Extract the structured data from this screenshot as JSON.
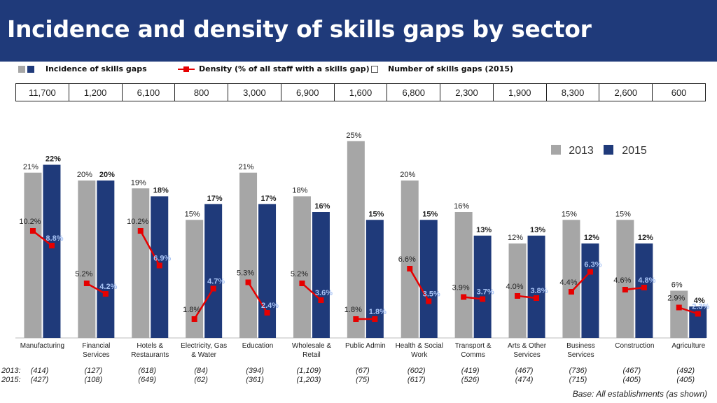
{
  "title": "Incidence and density of skills gaps by sector",
  "legend_top": {
    "incidence": "Incidence of skills gaps",
    "density": "Density (% of all staff with a skills gap)",
    "number": "Number of skills gaps (2015)"
  },
  "colors": {
    "y2013": "#a6a6a6",
    "y2015": "#1f3a7a",
    "density": "#e60000",
    "density_label": "#a9c4f5"
  },
  "number_of_gaps": [
    "11,700",
    "1,200",
    "6,100",
    "800",
    "3,000",
    "6,900",
    "1,600",
    "6,800",
    "2,300",
    "1,900",
    "8,300",
    "2,600",
    "600"
  ],
  "base_counts": {
    "label_2013": "2013:",
    "label_2015": "2015:",
    "y2013": [
      "(414)",
      "(127)",
      "(618)",
      "(84)",
      "(394)",
      "(1,109)",
      "(67)",
      "(602)",
      "(419)",
      "(467)",
      "(736)",
      "(467)",
      "(492)"
    ],
    "y2015": [
      "(427)",
      "(108)",
      "(649)",
      "(62)",
      "(361)",
      "(1,203)",
      "(75)",
      "(617)",
      "(526)",
      "(474)",
      "(715)",
      "(405)",
      "(405)"
    ]
  },
  "base_note": "Base: All establishments (as shown)",
  "chart_data": {
    "type": "bar",
    "categories": [
      [
        "Manufacturing"
      ],
      [
        "Financial",
        "Services"
      ],
      [
        "Hotels &",
        "Restaurants"
      ],
      [
        "Electricity, Gas",
        "& Water"
      ],
      [
        "Education"
      ],
      [
        "Wholesale &",
        "Retail"
      ],
      [
        "Public Admin"
      ],
      [
        "Health & Social",
        "Work"
      ],
      [
        "Transport &",
        "Comms"
      ],
      [
        "Arts & Other",
        "Services"
      ],
      [
        "Business",
        "Services"
      ],
      [
        "Construction"
      ],
      [
        "Agriculture"
      ]
    ],
    "series": [
      {
        "name": "2013",
        "values": [
          21,
          20,
          19,
          15,
          21,
          18,
          25,
          20,
          16,
          12,
          15,
          15,
          6
        ]
      },
      {
        "name": "2015",
        "values": [
          22,
          20,
          18,
          17,
          17,
          16,
          15,
          15,
          13,
          13,
          12,
          12,
          4
        ]
      }
    ],
    "bar_labels_2013": [
      "21%",
      "20%",
      "19%",
      "15%",
      "21%",
      "18%",
      "25%",
      "20%",
      "16%",
      "12%",
      "15%",
      "15%",
      "6%"
    ],
    "bar_labels_2015": [
      "22%",
      "20%",
      "18%",
      "17%",
      "17%",
      "16%",
      "15%",
      "15%",
      "13%",
      "13%",
      "12%",
      "12%",
      "4%"
    ],
    "density": {
      "y2013": [
        10.2,
        5.2,
        10.2,
        1.8,
        5.3,
        5.2,
        1.8,
        6.6,
        3.9,
        4.0,
        4.4,
        4.6,
        2.9
      ],
      "y2015": [
        8.8,
        4.2,
        6.9,
        4.7,
        2.4,
        3.6,
        1.8,
        3.5,
        3.7,
        3.8,
        6.3,
        4.8,
        2.3
      ],
      "labels_2013": [
        "10.2%",
        "5.2%",
        "10.2%",
        "1.8%",
        "5.3%",
        "5.2%",
        "1.8%",
        "6.6%",
        "3.9%",
        "4.0%",
        "4.4%",
        "4.6%",
        "2.9%"
      ],
      "labels_2015": [
        "8.8%",
        "4.2%",
        "6.9%",
        "4.7%",
        "2.4%",
        "3.6%",
        "1.8%",
        "3.5%",
        "3.7%",
        "3.8%",
        "6.3%",
        "4.8%",
        "2.3%"
      ]
    },
    "ylim": [
      0,
      25
    ],
    "legend_position": "top-right",
    "grid": false
  }
}
